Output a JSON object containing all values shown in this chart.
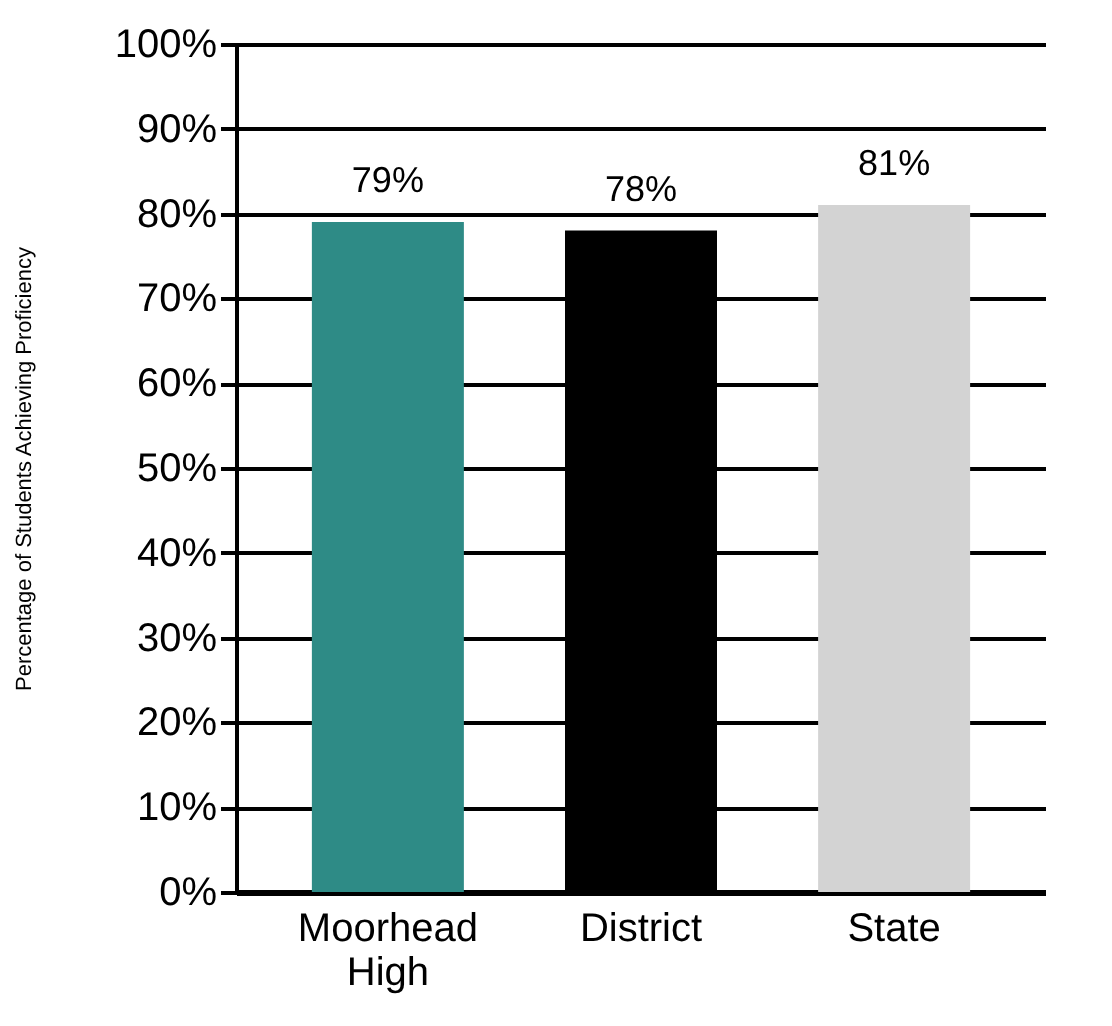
{
  "chart_data": {
    "type": "bar",
    "ylabel": "Percentage of Students Achieving Proficiency",
    "categories": [
      "Moorhead High",
      "District",
      "State"
    ],
    "values": [
      79,
      78,
      81
    ],
    "colors": [
      "#2e8b86",
      "#000000",
      "#d3d3d3"
    ],
    "value_labels": [
      "79%",
      "78%",
      "81%"
    ],
    "ylim": [
      0,
      100
    ],
    "yticks": [
      {
        "value": 0,
        "label": "0%"
      },
      {
        "value": 10,
        "label": "10%"
      },
      {
        "value": 20,
        "label": "20%"
      },
      {
        "value": 30,
        "label": "30%"
      },
      {
        "value": 40,
        "label": "40%"
      },
      {
        "value": 50,
        "label": "50%"
      },
      {
        "value": 60,
        "label": "60%"
      },
      {
        "value": 70,
        "label": "70%"
      },
      {
        "value": 80,
        "label": "80%"
      },
      {
        "value": 90,
        "label": "90%"
      },
      {
        "value": 100,
        "label": "100%"
      }
    ],
    "grid": "y"
  }
}
